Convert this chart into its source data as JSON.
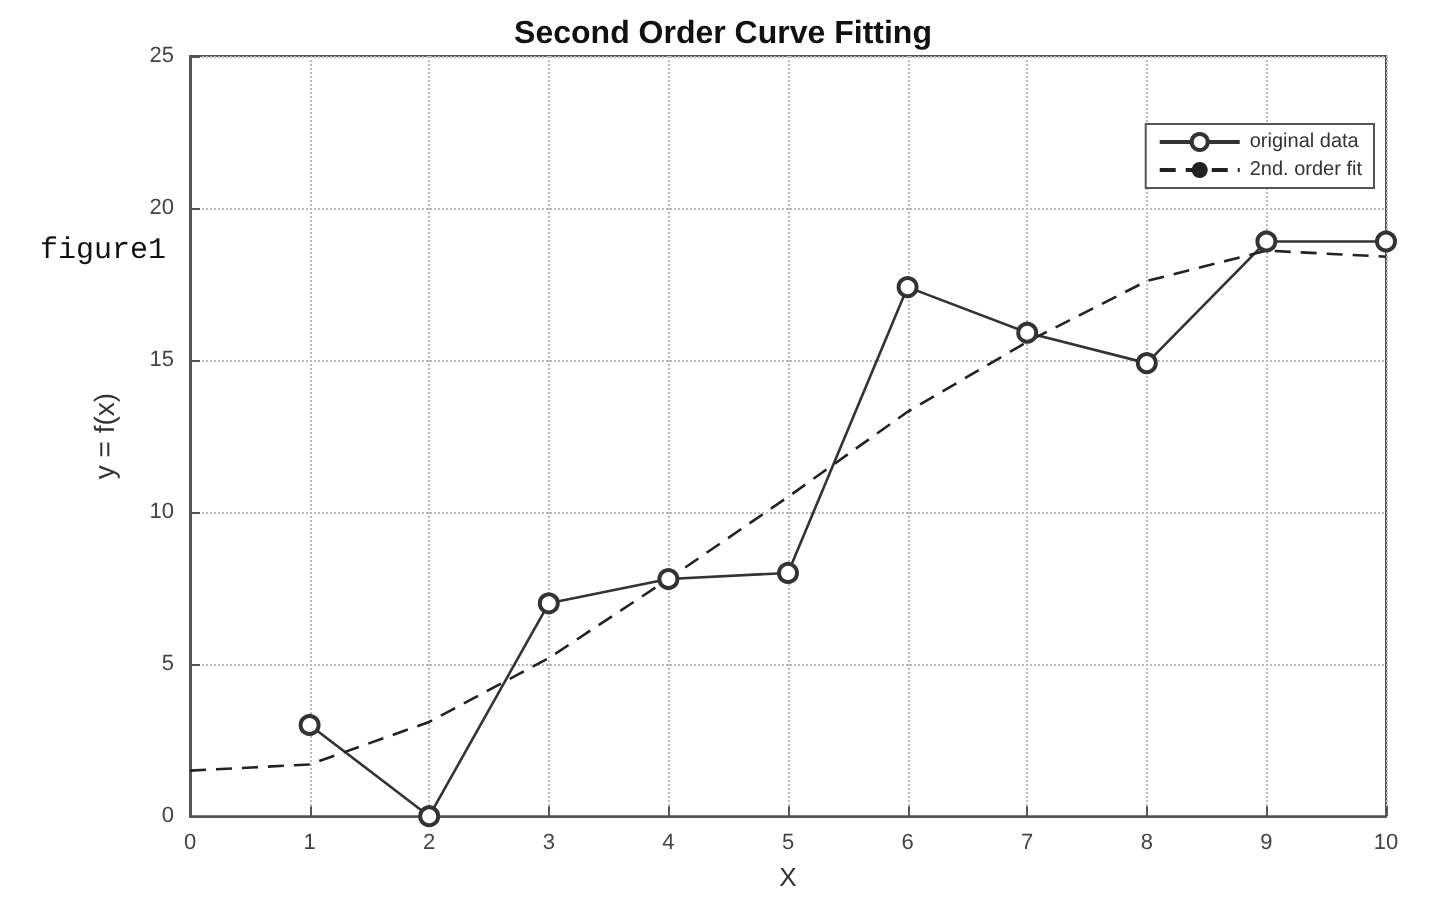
{
  "chart_data": {
    "type": "line",
    "title": "Second Order Curve Fitting",
    "xlabel": "X",
    "ylabel": "y = f(x)",
    "annotations": [
      "figure1"
    ],
    "x": [
      1,
      2,
      3,
      4,
      5,
      6,
      7,
      8,
      9,
      10
    ],
    "series": [
      {
        "name": "original data",
        "color": "#333333",
        "values": [
          3,
          0,
          7,
          7.8,
          8,
          17.4,
          15.9,
          14.9,
          18.9,
          18.9
        ],
        "marker": "circle",
        "line_style": "solid"
      },
      {
        "name": "2nd. order fit",
        "type": "line",
        "color": "#222222",
        "x": [
          0,
          1,
          2,
          3,
          4,
          5,
          6,
          7,
          8,
          9,
          10
        ],
        "values": [
          1.5,
          1.7,
          3.1,
          5.2,
          7.8,
          10.5,
          13.3,
          15.6,
          17.6,
          18.6,
          18.4
        ],
        "marker": "none",
        "line_style": "dashed"
      }
    ],
    "xlim": [
      0,
      10
    ],
    "xticks": [
      0,
      1,
      2,
      3,
      4,
      5,
      6,
      7,
      8,
      9,
      10
    ],
    "ylim": [
      0,
      25
    ],
    "yticks": [
      0,
      5,
      10,
      15,
      20,
      25
    ],
    "grid": true,
    "legend": "top right"
  }
}
